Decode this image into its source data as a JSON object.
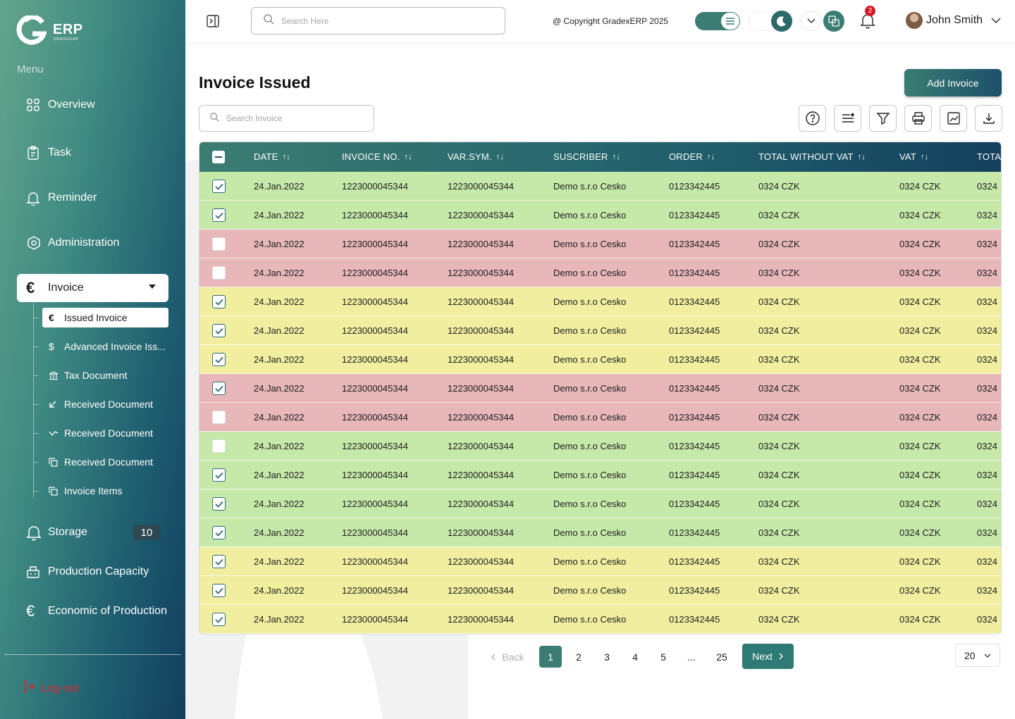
{
  "sidebar": {
    "brand": "ERP",
    "brand_sub": "GRADEXERP",
    "menu_label": "Menu",
    "items": [
      {
        "label": "Overview",
        "icon": "grid-icon"
      },
      {
        "label": "Task",
        "icon": "clipboard-icon"
      },
      {
        "label": "Reminder",
        "icon": "bell-icon"
      },
      {
        "label": "Administration",
        "icon": "settings-icon"
      },
      {
        "label": "Invoice",
        "icon": "euro-icon"
      },
      {
        "label": "Storage",
        "icon": "bell-icon",
        "badge": "10"
      },
      {
        "label": "Production Capacity",
        "icon": "factory-icon"
      },
      {
        "label": "Economic of Production",
        "icon": "euro-icon"
      }
    ],
    "sub_items": [
      {
        "label": "Issued Invoice",
        "icon": "€"
      },
      {
        "label": "Advanced Invoice Iss...",
        "icon": "$"
      },
      {
        "label": "Tax Document",
        "icon": "bank-icon"
      },
      {
        "label": "Received Document",
        "icon": "arrow-down-left-icon"
      },
      {
        "label": "Received Document",
        "icon": "wave-icon"
      },
      {
        "label": "Received Document",
        "icon": "copy-icon"
      },
      {
        "label": "Invoice Items",
        "icon": "copy-icon"
      }
    ],
    "logout": "Log out"
  },
  "topbar": {
    "search_placeholder": "Search Here",
    "copyright": "@ Copyright GradexERP 2025",
    "notification_count": "2",
    "user_name": "John Smith"
  },
  "page": {
    "title": "Invoice Issued",
    "add_button": "Add Invoice",
    "search_placeholder": "Search Invoice"
  },
  "table": {
    "columns": [
      "DATE",
      "INVOICE NO.",
      "VAR.SYM.",
      "SUSCRIBER",
      "ORDER",
      "TOTAL WITHOUT VAT",
      "VAT",
      "TOTA"
    ],
    "sort_glyph": "↑↓",
    "rows": [
      {
        "status": "green",
        "checked": true,
        "cells": [
          "24.Jan.2022",
          "1223000045344",
          "1223000045344",
          "Demo s.r.o Cesko",
          "0123342445",
          "0324 CZK",
          "0324 CZK",
          "0324"
        ]
      },
      {
        "status": "green",
        "checked": true,
        "cells": [
          "24.Jan.2022",
          "1223000045344",
          "1223000045344",
          "Demo s.r.o Cesko",
          "0123342445",
          "0324 CZK",
          "0324 CZK",
          "0324"
        ]
      },
      {
        "status": "red",
        "checked": false,
        "cells": [
          "24.Jan.2022",
          "1223000045344",
          "1223000045344",
          "Demo s.r.o Cesko",
          "0123342445",
          "0324 CZK",
          "0324 CZK",
          "0324"
        ]
      },
      {
        "status": "red",
        "checked": false,
        "cells": [
          "24.Jan.2022",
          "1223000045344",
          "1223000045344",
          "Demo s.r.o Cesko",
          "0123342445",
          "0324 CZK",
          "0324 CZK",
          "0324"
        ]
      },
      {
        "status": "yellow",
        "checked": true,
        "cells": [
          "24.Jan.2022",
          "1223000045344",
          "1223000045344",
          "Demo s.r.o Cesko",
          "0123342445",
          "0324 CZK",
          "0324 CZK",
          "0324"
        ]
      },
      {
        "status": "yellow",
        "checked": true,
        "cells": [
          "24.Jan.2022",
          "1223000045344",
          "1223000045344",
          "Demo s.r.o Cesko",
          "0123342445",
          "0324 CZK",
          "0324 CZK",
          "0324"
        ]
      },
      {
        "status": "yellow",
        "checked": true,
        "cells": [
          "24.Jan.2022",
          "1223000045344",
          "1223000045344",
          "Demo s.r.o Cesko",
          "0123342445",
          "0324 CZK",
          "0324 CZK",
          "0324"
        ]
      },
      {
        "status": "red",
        "checked": true,
        "cells": [
          "24.Jan.2022",
          "1223000045344",
          "1223000045344",
          "Demo s.r.o Cesko",
          "0123342445",
          "0324 CZK",
          "0324 CZK",
          "0324"
        ]
      },
      {
        "status": "red",
        "checked": false,
        "cells": [
          "24.Jan.2022",
          "1223000045344",
          "1223000045344",
          "Demo s.r.o Cesko",
          "0123342445",
          "0324 CZK",
          "0324 CZK",
          "0324"
        ]
      },
      {
        "status": "green",
        "checked": false,
        "cells": [
          "24.Jan.2022",
          "1223000045344",
          "1223000045344",
          "Demo s.r.o Cesko",
          "0123342445",
          "0324 CZK",
          "0324 CZK",
          "0324"
        ]
      },
      {
        "status": "green",
        "checked": true,
        "cells": [
          "24.Jan.2022",
          "1223000045344",
          "1223000045344",
          "Demo s.r.o Cesko",
          "0123342445",
          "0324 CZK",
          "0324 CZK",
          "0324"
        ]
      },
      {
        "status": "green",
        "checked": true,
        "cells": [
          "24.Jan.2022",
          "1223000045344",
          "1223000045344",
          "Demo s.r.o Cesko",
          "0123342445",
          "0324 CZK",
          "0324 CZK",
          "0324"
        ]
      },
      {
        "status": "green",
        "checked": true,
        "cells": [
          "24.Jan.2022",
          "1223000045344",
          "1223000045344",
          "Demo s.r.o Cesko",
          "0123342445",
          "0324 CZK",
          "0324 CZK",
          "0324"
        ]
      },
      {
        "status": "yellow",
        "checked": true,
        "cells": [
          "24.Jan.2022",
          "1223000045344",
          "1223000045344",
          "Demo s.r.o Cesko",
          "0123342445",
          "0324 CZK",
          "0324 CZK",
          "0324"
        ]
      },
      {
        "status": "yellow",
        "checked": true,
        "cells": [
          "24.Jan.2022",
          "1223000045344",
          "1223000045344",
          "Demo s.r.o Cesko",
          "0123342445",
          "0324 CZK",
          "0324 CZK",
          "0324"
        ]
      },
      {
        "status": "yellow",
        "checked": true,
        "cells": [
          "24.Jan.2022",
          "1223000045344",
          "1223000045344",
          "Demo s.r.o Cesko",
          "0123342445",
          "0324 CZK",
          "0324 CZK",
          "0324"
        ]
      }
    ]
  },
  "pagination": {
    "back": "Back",
    "pages": [
      "1",
      "2",
      "3",
      "4",
      "5",
      "...",
      "25"
    ],
    "current": "1",
    "next": "Next",
    "per_page": "20"
  },
  "colors": {
    "accent": "#3b7d72",
    "row_green": "#c6e9aa",
    "row_red": "#e7b7b9",
    "row_yellow": "#f2ee9f",
    "danger": "#e2262f"
  }
}
